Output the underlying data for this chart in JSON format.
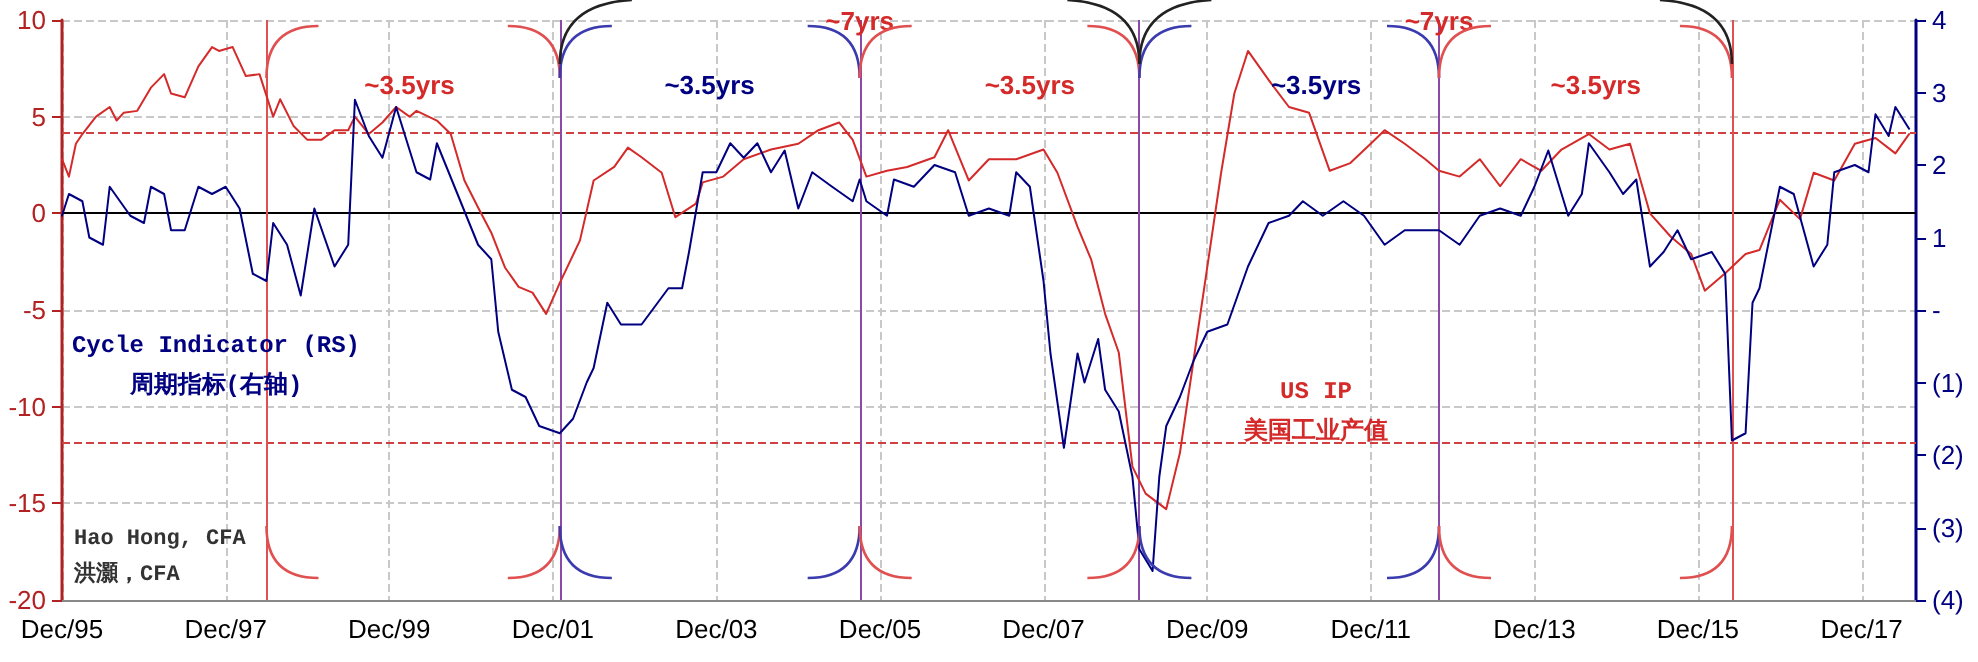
{
  "chart_data": {
    "type": "line",
    "xlim": [
      "1995-12",
      "2018-08"
    ],
    "xticks": [
      {
        "value": "1995-12",
        "label": "Dec/95"
      },
      {
        "value": "1997-12",
        "label": "Dec/97"
      },
      {
        "value": "1999-12",
        "label": "Dec/99"
      },
      {
        "value": "2001-12",
        "label": "Dec/01"
      },
      {
        "value": "2003-12",
        "label": "Dec/03"
      },
      {
        "value": "2005-12",
        "label": "Dec/05"
      },
      {
        "value": "2007-12",
        "label": "Dec/07"
      },
      {
        "value": "2009-12",
        "label": "Dec/09"
      },
      {
        "value": "2011-12",
        "label": "Dec/11"
      },
      {
        "value": "2013-12",
        "label": "Dec/13"
      },
      {
        "value": "2015-12",
        "label": "Dec/15"
      },
      {
        "value": "2017-12",
        "label": "Dec/17"
      }
    ],
    "ylim": [
      -20,
      10
    ],
    "yticks": [
      -20,
      -15,
      -10,
      -5,
      0,
      5,
      10
    ],
    "y2lim": [
      -4,
      4
    ],
    "y2ticks": [
      {
        "value": -4,
        "label": "(4)"
      },
      {
        "value": -3,
        "label": "(3)"
      },
      {
        "value": -2,
        "label": "(2)"
      },
      {
        "value": -1,
        "label": "(1)"
      },
      {
        "value": 0,
        "label": "-"
      },
      1,
      2,
      3,
      4
    ],
    "grid": true,
    "legend": false,
    "marker": "none",
    "line_style": "solid",
    "ref_lines": [
      {
        "axis": "y",
        "value": 0,
        "color": "#000000",
        "line_style": "solid"
      },
      {
        "axis": "y",
        "value": 4.2,
        "color": "#d04040",
        "line_style": "dashed"
      },
      {
        "axis": "y",
        "value": -11.9,
        "color": "#d04040",
        "line_style": "dashed"
      },
      {
        "axis": "x",
        "value": "1998-06",
        "color": "#e05050",
        "line_style": "solid"
      },
      {
        "axis": "x",
        "value": "2002-01",
        "color": "#8a4aa8",
        "line_style": "solid"
      },
      {
        "axis": "x",
        "value": "2005-09",
        "color": "#8a4aa8",
        "line_style": "solid"
      },
      {
        "axis": "x",
        "value": "2009-02",
        "color": "#8a4aa8",
        "line_style": "solid"
      },
      {
        "axis": "x",
        "value": "2012-10",
        "color": "#8a4aa8",
        "line_style": "solid"
      },
      {
        "axis": "x",
        "value": "2016-05",
        "color": "#e05050",
        "line_style": "solid"
      }
    ],
    "annotations": [
      "~3.5yrs",
      "~3.5yrs",
      {
        "text": "~7yrs",
        "x": "2005-09",
        "y": 10
      },
      "~3.5yrs",
      "~3.5yrs",
      {
        "text": "~7yrs",
        "x": "2012-10",
        "y": 10
      },
      "~3.5yrs",
      "Hao Hong, CFA\n洪灝，CFA"
    ],
    "series": [
      {
        "name": "US IP\n美国工业产值",
        "color": "#d42a2a",
        "x": [
          "1995-12",
          "1996-01",
          "1996-02",
          "1996-03",
          "1996-05",
          "1996-07",
          "1996-08",
          "1996-09",
          "1996-11",
          "1997-01",
          "1997-03",
          "1997-04",
          "1997-06",
          "1997-08",
          "1997-10",
          "1997-11",
          "1998-01",
          "1998-03",
          "1998-05",
          "1998-07",
          "1998-08",
          "1998-10",
          "1998-12",
          "1999-02",
          "1999-04",
          "1999-06",
          "1999-07",
          "1999-09",
          "1999-11",
          "2000-01",
          "2000-03",
          "2000-04",
          "2000-07",
          "2000-09",
          "2000-11",
          "2001-01",
          "2001-03",
          "2001-05",
          "2001-07",
          "2001-09",
          "2001-11",
          "2002-01",
          "2002-04",
          "2002-06",
          "2002-09",
          "2002-11",
          "2003-01",
          "2003-04",
          "2003-06",
          "2003-09",
          "2003-10",
          "2004-01",
          "2004-04",
          "2004-08",
          "2004-12",
          "2005-03",
          "2005-06",
          "2005-08",
          "2005-10",
          "2006-01",
          "2006-04",
          "2006-08",
          "2006-10",
          "2007-01",
          "2007-04",
          "2007-08",
          "2007-12",
          "2008-02",
          "2008-05",
          "2008-07",
          "2008-09",
          "2008-11",
          "2009-01",
          "2009-03",
          "2009-06",
          "2009-08",
          "2009-10",
          "2009-12",
          "2010-02",
          "2010-04",
          "2010-06",
          "2010-09",
          "2010-12",
          "2011-03",
          "2011-06",
          "2011-09",
          "2011-12",
          "2012-02",
          "2012-05",
          "2012-08",
          "2012-10",
          "2013-01",
          "2013-04",
          "2013-07",
          "2013-10",
          "2014-01",
          "2014-04",
          "2014-08",
          "2014-11",
          "2015-02",
          "2015-05",
          "2015-08",
          "2015-11",
          "2016-01",
          "2016-04",
          "2016-07",
          "2016-09",
          "2016-12",
          "2017-03",
          "2017-05",
          "2017-08",
          "2017-11",
          "2018-02",
          "2018-05",
          "2018-07"
        ],
        "values": [
          2.8,
          1.9,
          3.6,
          4.1,
          5,
          5.5,
          4.8,
          5.2,
          5.3,
          6.5,
          7.2,
          6.2,
          6,
          7.6,
          8.6,
          8.4,
          8.6,
          7.1,
          7.2,
          5,
          5.9,
          4.5,
          3.8,
          3.8,
          4.3,
          4.3,
          5,
          4.1,
          4.7,
          5.5,
          5,
          5.3,
          4.8,
          4.1,
          1.7,
          0.3,
          -1,
          -2.8,
          -3.8,
          -4.1,
          -5.2,
          -3.6,
          -1.4,
          1.7,
          2.4,
          3.4,
          2.9,
          2.1,
          -0.2,
          0.5,
          1.6,
          1.9,
          2.8,
          3.3,
          3.6,
          4.3,
          4.7,
          3.8,
          1.9,
          2.2,
          2.4,
          2.9,
          4.3,
          1.7,
          2.8,
          2.8,
          3.3,
          2.1,
          -0.7,
          -2.4,
          -5.2,
          -7.2,
          -13.1,
          -14.5,
          -15.3,
          -12.4,
          -7.6,
          -2.8,
          2.1,
          6.2,
          8.4,
          6.9,
          5.5,
          5.2,
          2.2,
          2.6,
          3.6,
          4.3,
          3.6,
          2.8,
          2.2,
          1.9,
          2.8,
          1.4,
          2.8,
          2.2,
          3.3,
          4.1,
          3.3,
          3.6,
          0,
          -1.2,
          -2.1,
          -4,
          -3.1,
          -2.1,
          -1.9,
          0.7,
          -0.3,
          2.1,
          1.7,
          3.6,
          3.9,
          3.1,
          4.1
        ]
      },
      {
        "name": "Cycle Indicator (RS)\n周期指标(右轴)",
        "color": "#000080",
        "axis": "y2",
        "x": [
          "1995-12",
          "1996-01",
          "1996-03",
          "1996-04",
          "1996-06",
          "1996-07",
          "1996-10",
          "1996-12",
          "1997-01",
          "1997-03",
          "1997-04",
          "1997-06",
          "1997-08",
          "1997-10",
          "1997-12",
          "1998-02",
          "1998-04",
          "1998-06",
          "1998-07",
          "1998-09",
          "1998-11",
          "1999-01",
          "1999-04",
          "1999-06",
          "1999-07",
          "1999-09",
          "1999-11",
          "2000-01",
          "2000-04",
          "2000-06",
          "2000-07",
          "2000-10",
          "2001-01",
          "2001-03",
          "2001-04",
          "2001-06",
          "2001-08",
          "2001-10",
          "2002-01",
          "2002-03",
          "2002-05",
          "2002-06",
          "2002-08",
          "2002-10",
          "2003-01",
          "2003-05",
          "2003-07",
          "2003-08",
          "2003-10",
          "2003-12",
          "2004-02",
          "2004-04",
          "2004-06",
          "2004-08",
          "2004-10",
          "2004-12",
          "2005-02",
          "2005-05",
          "2005-08",
          "2005-09",
          "2005-10",
          "2006-01",
          "2006-02",
          "2006-05",
          "2006-08",
          "2006-11",
          "2007-01",
          "2007-04",
          "2007-07",
          "2007-08",
          "2007-10",
          "2007-12",
          "2008-01",
          "2008-03",
          "2008-05",
          "2008-06",
          "2008-08",
          "2008-09",
          "2008-11",
          "2009-01",
          "2009-02",
          "2009-04",
          "2009-05",
          "2009-06",
          "2009-08",
          "2009-10",
          "2009-12",
          "2010-03",
          "2010-06",
          "2010-09",
          "2010-12",
          "2011-02",
          "2011-05",
          "2011-08",
          "2011-11",
          "2012-02",
          "2012-05",
          "2012-08",
          "2012-10",
          "2013-01",
          "2013-04",
          "2013-07",
          "2013-10",
          "2013-12",
          "2014-02",
          "2014-05",
          "2014-07",
          "2014-08",
          "2014-11",
          "2015-01",
          "2015-03",
          "2015-05",
          "2015-07",
          "2015-09",
          "2015-11",
          "2016-02",
          "2016-04",
          "2016-05",
          "2016-07",
          "2016-08",
          "2016-09",
          "2016-12",
          "2017-02",
          "2017-05",
          "2017-07",
          "2017-08",
          "2017-11",
          "2018-01",
          "2018-02",
          "2018-04",
          "2018-05",
          "2018-07"
        ],
        "values": [
          1.3,
          1.6,
          1.5,
          1.0,
          0.9,
          1.7,
          1.3,
          1.2,
          1.7,
          1.6,
          1.1,
          1.1,
          1.7,
          1.6,
          1.7,
          1.4,
          0.5,
          0.4,
          1.2,
          0.9,
          0.2,
          1.4,
          0.6,
          0.9,
          2.9,
          2.4,
          2.1,
          2.8,
          1.9,
          1.8,
          2.3,
          1.6,
          0.9,
          0.7,
          -0.3,
          -1.1,
          -1.2,
          -1.6,
          -1.7,
          -1.5,
          -1.0,
          -0.8,
          0.1,
          -0.2,
          -0.2,
          0.3,
          0.3,
          0.8,
          1.9,
          1.9,
          2.3,
          2.1,
          2.3,
          1.9,
          2.2,
          1.4,
          1.9,
          1.7,
          1.5,
          1.8,
          1.5,
          1.3,
          1.8,
          1.7,
          2.0,
          1.9,
          1.3,
          1.4,
          1.3,
          1.9,
          1.7,
          0.4,
          -0.6,
          -1.9,
          -0.6,
          -1.0,
          -0.4,
          -1.1,
          -1.4,
          -2.3,
          -3.3,
          -3.6,
          -2.3,
          -1.6,
          -1.2,
          -0.7,
          -0.3,
          -0.2,
          0.6,
          1.2,
          1.3,
          1.5,
          1.3,
          1.5,
          1.3,
          0.9,
          1.1,
          1.1,
          1.1,
          0.9,
          1.3,
          1.4,
          1.3,
          1.7,
          2.2,
          1.3,
          1.6,
          2.3,
          1.9,
          1.6,
          1.8,
          0.6,
          0.8,
          1.1,
          0.7,
          0.8,
          0.5,
          -1.8,
          -1.7,
          0.1,
          0.3,
          1.7,
          1.6,
          0.6,
          0.9,
          1.9,
          2.0,
          1.9,
          2.7,
          2.4,
          2.8,
          2.5
        ]
      }
    ]
  }
}
